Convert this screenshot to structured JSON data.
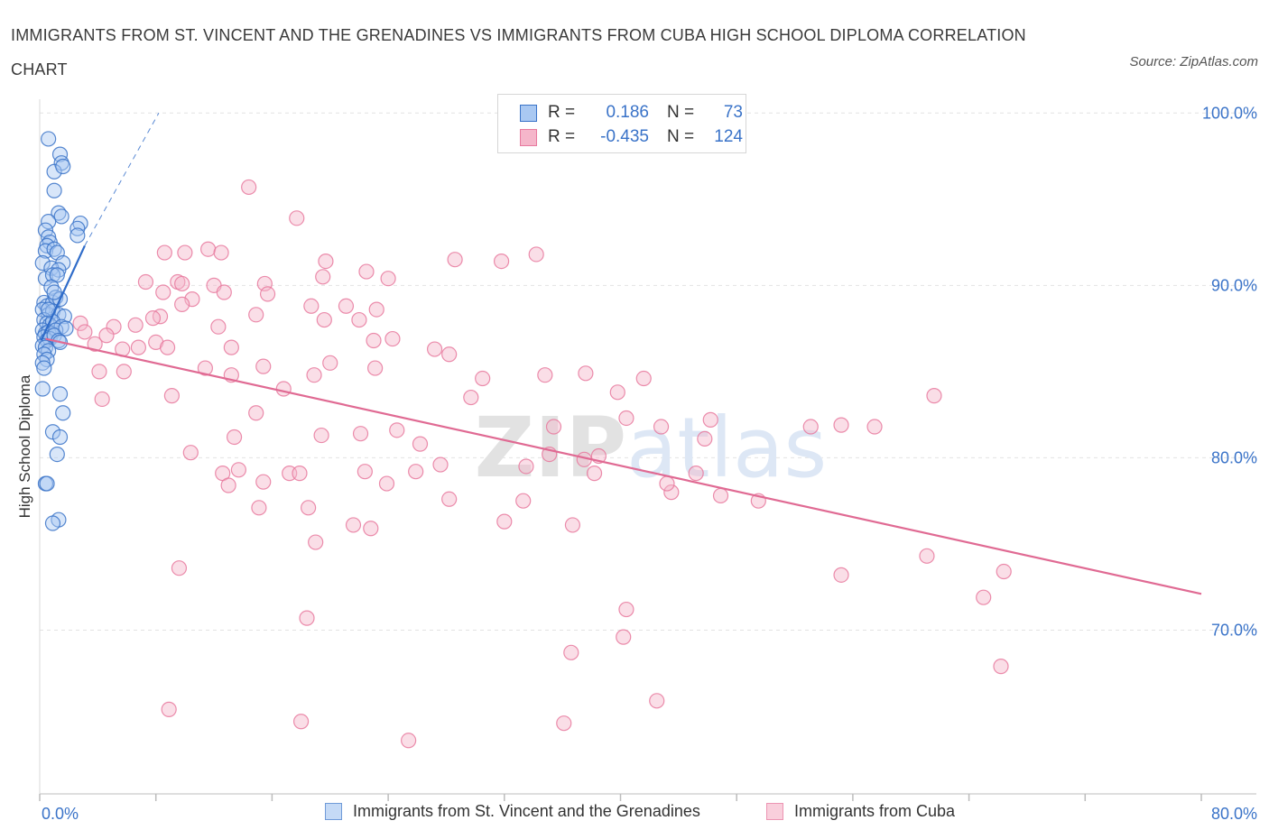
{
  "title": "IMMIGRANTS FROM ST. VINCENT AND THE GRENADINES VS IMMIGRANTS FROM CUBA HIGH SCHOOL DIPLOMA CORRELATION CHART",
  "source": "Source: ZipAtlas.com",
  "watermark": "ZIPatlas",
  "legend": {
    "rows": [
      {
        "r_label": "R =",
        "r_value": "0.186",
        "n_label": "N =",
        "n_value": "73"
      },
      {
        "r_label": "R =",
        "r_value": "-0.435",
        "n_label": "N =",
        "n_value": "124"
      }
    ]
  },
  "colors": {
    "blue_fill": "#a9c8f2",
    "blue_stroke": "#3a73c8",
    "blue_line": "#2f6cc9",
    "pink_fill": "#f5b6ca",
    "pink_stroke": "#e8799e",
    "pink_line": "#e06a93",
    "tick_label": "#3a73c8",
    "grid": "#e3e3e3"
  },
  "chart_data": {
    "type": "scatter",
    "title": "IMMIGRANTS FROM ST. VINCENT AND THE GRENADINES VS IMMIGRANTS FROM CUBA HIGH SCHOOL DIPLOMA CORRELATION CHART",
    "xlabel": "",
    "ylabel": "High School Diploma",
    "xlim": [
      0,
      80
    ],
    "ylim": [
      60.5,
      100.8
    ],
    "x_tick_labels": [
      "0.0%",
      "80.0%"
    ],
    "y_ticks": [
      70,
      80,
      90,
      100
    ],
    "y_tick_labels": [
      "70.0%",
      "80.0%",
      "90.0%",
      "100.0%"
    ],
    "grid": true,
    "legend_position": "top-center",
    "series": [
      {
        "name": "Immigrants from St. Vincent and the Grenadines",
        "color": "#a9c8f2",
        "R": 0.186,
        "N": 73,
        "trend_solid": [
          [
            0.1,
            86.8
          ],
          [
            3.1,
            92.3
          ]
        ],
        "trend_dashed": [
          [
            3.1,
            92.3
          ],
          [
            8.2,
            100.0
          ]
        ],
        "points": [
          [
            0.6,
            98.5
          ],
          [
            1.4,
            97.6
          ],
          [
            1.5,
            97.1
          ],
          [
            1.0,
            96.6
          ],
          [
            1.6,
            96.9
          ],
          [
            1.0,
            95.5
          ],
          [
            1.3,
            94.2
          ],
          [
            1.5,
            94.0
          ],
          [
            0.6,
            93.7
          ],
          [
            2.8,
            93.6
          ],
          [
            0.4,
            93.2
          ],
          [
            2.6,
            93.3
          ],
          [
            0.6,
            92.8
          ],
          [
            0.7,
            92.5
          ],
          [
            0.5,
            92.3
          ],
          [
            2.6,
            92.9
          ],
          [
            0.4,
            92.0
          ],
          [
            1.0,
            92.1
          ],
          [
            1.2,
            91.9
          ],
          [
            1.6,
            91.3
          ],
          [
            0.2,
            91.3
          ],
          [
            0.8,
            91.0
          ],
          [
            1.3,
            90.9
          ],
          [
            0.4,
            90.4
          ],
          [
            0.9,
            90.6
          ],
          [
            1.2,
            90.6
          ],
          [
            0.8,
            89.9
          ],
          [
            0.3,
            89.0
          ],
          [
            0.5,
            88.8
          ],
          [
            0.9,
            89.0
          ],
          [
            1.1,
            89.3
          ],
          [
            1.4,
            89.2
          ],
          [
            0.2,
            88.6
          ],
          [
            0.6,
            88.3
          ],
          [
            0.9,
            88.5
          ],
          [
            1.3,
            88.3
          ],
          [
            1.7,
            88.2
          ],
          [
            0.3,
            88.0
          ],
          [
            0.5,
            87.8
          ],
          [
            0.7,
            87.7
          ],
          [
            0.9,
            87.9
          ],
          [
            1.5,
            87.6
          ],
          [
            0.2,
            87.4
          ],
          [
            0.4,
            87.2
          ],
          [
            0.6,
            87.3
          ],
          [
            0.8,
            87.2
          ],
          [
            1.1,
            87.4
          ],
          [
            0.3,
            87.0
          ],
          [
            0.5,
            86.8
          ],
          [
            0.7,
            86.9
          ],
          [
            1.0,
            87.1
          ],
          [
            1.3,
            86.8
          ],
          [
            0.2,
            86.5
          ],
          [
            0.4,
            86.4
          ],
          [
            0.6,
            86.2
          ],
          [
            0.3,
            86.0
          ],
          [
            0.5,
            85.7
          ],
          [
            0.2,
            85.5
          ],
          [
            0.3,
            85.2
          ],
          [
            0.2,
            84.0
          ],
          [
            1.4,
            83.7
          ],
          [
            1.6,
            82.6
          ],
          [
            0.9,
            81.5
          ],
          [
            1.4,
            81.2
          ],
          [
            1.2,
            80.2
          ],
          [
            0.4,
            78.5
          ],
          [
            0.5,
            78.5
          ],
          [
            1.3,
            76.4
          ],
          [
            0.9,
            76.2
          ],
          [
            1.4,
            86.7
          ],
          [
            1.8,
            87.5
          ],
          [
            0.6,
            88.6
          ],
          [
            1.0,
            89.6
          ]
        ]
      },
      {
        "name": "Immigrants from Cuba",
        "color": "#f5b6ca",
        "R": -0.435,
        "N": 124,
        "trend": [
          [
            0.4,
            86.9
          ],
          [
            80.0,
            72.1
          ]
        ],
        "points": [
          [
            14.4,
            95.7
          ],
          [
            17.7,
            93.9
          ],
          [
            8.6,
            91.9
          ],
          [
            10.0,
            91.9
          ],
          [
            11.6,
            92.1
          ],
          [
            12.5,
            91.9
          ],
          [
            19.7,
            91.4
          ],
          [
            22.5,
            90.8
          ],
          [
            24.0,
            90.4
          ],
          [
            28.6,
            91.5
          ],
          [
            31.8,
            91.4
          ],
          [
            34.2,
            91.8
          ],
          [
            7.3,
            90.2
          ],
          [
            9.5,
            90.2
          ],
          [
            9.8,
            90.1
          ],
          [
            12.0,
            90.0
          ],
          [
            12.7,
            89.6
          ],
          [
            15.5,
            90.1
          ],
          [
            15.7,
            89.5
          ],
          [
            19.5,
            90.5
          ],
          [
            18.7,
            88.8
          ],
          [
            21.1,
            88.8
          ],
          [
            10.5,
            89.2
          ],
          [
            8.5,
            89.6
          ],
          [
            9.8,
            88.9
          ],
          [
            8.3,
            88.2
          ],
          [
            7.8,
            88.1
          ],
          [
            6.6,
            87.7
          ],
          [
            5.1,
            87.6
          ],
          [
            2.8,
            87.8
          ],
          [
            3.1,
            87.3
          ],
          [
            4.6,
            87.1
          ],
          [
            12.3,
            87.6
          ],
          [
            14.9,
            88.3
          ],
          [
            19.6,
            88.0
          ],
          [
            22.0,
            88.0
          ],
          [
            23.2,
            88.6
          ],
          [
            3.8,
            86.6
          ],
          [
            5.7,
            86.3
          ],
          [
            6.8,
            86.4
          ],
          [
            8.0,
            86.7
          ],
          [
            8.8,
            86.4
          ],
          [
            13.2,
            86.4
          ],
          [
            23.0,
            86.8
          ],
          [
            24.3,
            86.9
          ],
          [
            27.2,
            86.3
          ],
          [
            28.2,
            86.0
          ],
          [
            11.4,
            85.2
          ],
          [
            15.4,
            85.3
          ],
          [
            20.0,
            85.5
          ],
          [
            23.1,
            85.2
          ],
          [
            4.1,
            85.0
          ],
          [
            5.8,
            85.0
          ],
          [
            13.2,
            84.8
          ],
          [
            16.8,
            84.0
          ],
          [
            18.9,
            84.8
          ],
          [
            30.5,
            84.6
          ],
          [
            34.8,
            84.8
          ],
          [
            37.6,
            84.9
          ],
          [
            39.8,
            83.8
          ],
          [
            41.6,
            84.6
          ],
          [
            40.4,
            82.3
          ],
          [
            42.8,
            81.8
          ],
          [
            46.2,
            82.2
          ],
          [
            53.1,
            81.8
          ],
          [
            55.2,
            81.9
          ],
          [
            57.5,
            81.8
          ],
          [
            61.6,
            83.6
          ],
          [
            4.3,
            83.4
          ],
          [
            9.1,
            83.6
          ],
          [
            19.4,
            81.3
          ],
          [
            22.1,
            81.4
          ],
          [
            24.6,
            81.6
          ],
          [
            29.7,
            83.5
          ],
          [
            26.2,
            80.8
          ],
          [
            27.6,
            79.6
          ],
          [
            25.9,
            79.2
          ],
          [
            13.7,
            79.3
          ],
          [
            10.4,
            80.3
          ],
          [
            13.4,
            81.2
          ],
          [
            12.6,
            79.1
          ],
          [
            14.9,
            82.6
          ],
          [
            17.2,
            79.1
          ],
          [
            17.9,
            79.1
          ],
          [
            13.0,
            78.4
          ],
          [
            15.4,
            78.6
          ],
          [
            18.5,
            77.1
          ],
          [
            15.1,
            77.1
          ],
          [
            21.6,
            76.1
          ],
          [
            19.0,
            75.1
          ],
          [
            33.5,
            79.5
          ],
          [
            37.5,
            79.9
          ],
          [
            35.1,
            80.2
          ],
          [
            35.4,
            81.8
          ],
          [
            38.5,
            80.1
          ],
          [
            43.5,
            78.0
          ],
          [
            46.9,
            77.8
          ],
          [
            49.5,
            77.5
          ],
          [
            55.2,
            73.2
          ],
          [
            61.1,
            74.3
          ],
          [
            66.4,
            73.4
          ],
          [
            65.0,
            71.9
          ],
          [
            32.0,
            76.3
          ],
          [
            22.8,
            75.9
          ],
          [
            9.6,
            73.6
          ],
          [
            22.4,
            79.2
          ],
          [
            33.3,
            77.5
          ],
          [
            45.2,
            79.1
          ],
          [
            45.8,
            81.1
          ],
          [
            43.2,
            78.5
          ],
          [
            38.2,
            79.1
          ],
          [
            23.9,
            78.5
          ],
          [
            36.7,
            76.1
          ],
          [
            28.2,
            77.6
          ],
          [
            18.4,
            70.7
          ],
          [
            36.6,
            68.7
          ],
          [
            40.4,
            71.2
          ],
          [
            40.2,
            69.6
          ],
          [
            66.2,
            67.9
          ],
          [
            8.9,
            65.4
          ],
          [
            42.5,
            65.9
          ],
          [
            18.0,
            64.7
          ],
          [
            36.1,
            64.6
          ],
          [
            25.4,
            63.6
          ]
        ]
      }
    ]
  },
  "bottom_legend": {
    "items": [
      {
        "label": "Immigrants from St. Vincent and the Grenadines"
      },
      {
        "label": "Immigrants from Cuba"
      }
    ]
  }
}
